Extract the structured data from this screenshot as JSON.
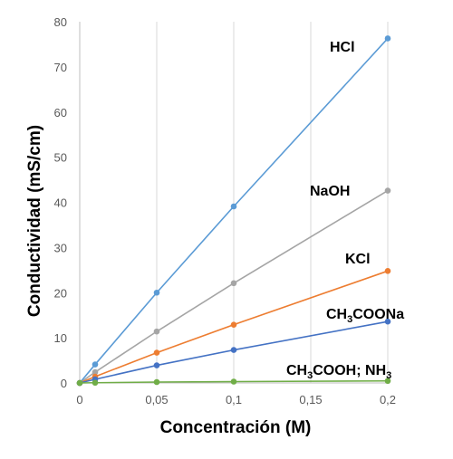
{
  "chart_data": {
    "type": "line",
    "xlabel": "Concentración (M)",
    "ylabel": "Conductividad (mS/cm)",
    "xlim": [
      0,
      0.2
    ],
    "ylim": [
      0,
      80
    ],
    "x_ticks": [
      0,
      0.05,
      0.1,
      0.15,
      0.2
    ],
    "x_tick_labels": [
      "0",
      "0,05",
      "0,1",
      "0,15",
      "0,2"
    ],
    "y_ticks": [
      0,
      10,
      20,
      30,
      40,
      50,
      60,
      70,
      80
    ],
    "y_tick_labels": [
      "0",
      "10",
      "20",
      "30",
      "40",
      "50",
      "60",
      "70",
      "80"
    ],
    "grid": "vertical",
    "series": [
      {
        "id": "hcl",
        "label_parts": [
          {
            "t": "HCl"
          }
        ],
        "color": "#5B9BD5",
        "x": [
          0,
          0.01,
          0.05,
          0.1,
          0.2
        ],
        "y": [
          0,
          4.1,
          20,
          39.1,
          76.3
        ]
      },
      {
        "id": "naoh",
        "label_parts": [
          {
            "t": "NaOH"
          }
        ],
        "color": "#A5A5A5",
        "x": [
          0,
          0.01,
          0.05,
          0.1,
          0.2
        ],
        "y": [
          0,
          2.4,
          11.4,
          22.1,
          42.6
        ]
      },
      {
        "id": "kcl",
        "label_parts": [
          {
            "t": "KCl"
          }
        ],
        "color": "#ED7D31",
        "x": [
          0,
          0.01,
          0.05,
          0.1,
          0.2
        ],
        "y": [
          0,
          1.4,
          6.7,
          12.9,
          24.8
        ]
      },
      {
        "id": "ch3coona",
        "label_parts": [
          {
            "t": "CH"
          },
          {
            "t": "3",
            "sub": true
          },
          {
            "t": "COONa"
          }
        ],
        "color": "#4472C4",
        "x": [
          0,
          0.01,
          0.05,
          0.1,
          0.2
        ],
        "y": [
          0,
          0.8,
          3.9,
          7.3,
          13.6
        ]
      },
      {
        "id": "weak",
        "label_parts": [
          {
            "t": "CH"
          },
          {
            "t": "3",
            "sub": true
          },
          {
            "t": "COOH; NH"
          },
          {
            "t": "3",
            "sub": true
          }
        ],
        "color": "#70AD47",
        "x": [
          0,
          0.01,
          0.05,
          0.1,
          0.2
        ],
        "y": [
          0,
          0.05,
          0.2,
          0.3,
          0.45
        ]
      }
    ]
  }
}
